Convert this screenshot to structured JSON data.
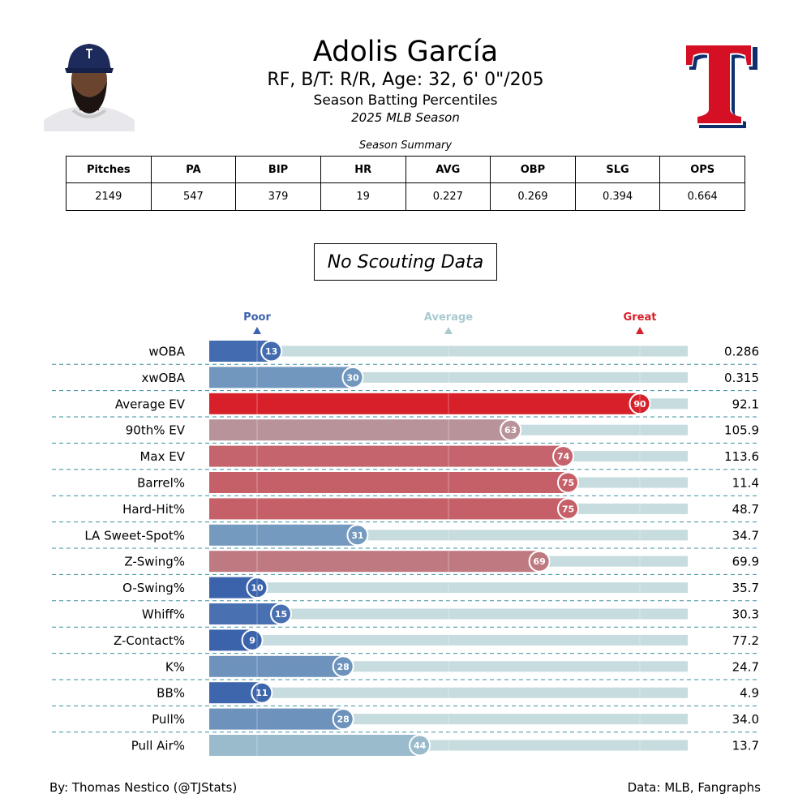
{
  "header": {
    "player_name": "Adolis García",
    "bio": "RF, B/T: R/R, Age: 32, 6' 0\"/205",
    "subtitle": "Season Batting Percentiles",
    "season": "2025 MLB Season"
  },
  "summary": {
    "title": "Season Summary",
    "headers": [
      "Pitches",
      "PA",
      "BIP",
      "HR",
      "AVG",
      "OBP",
      "SLG",
      "OPS"
    ],
    "values": [
      "2149",
      "547",
      "379",
      "19",
      "0.227",
      "0.269",
      "0.394",
      "0.664"
    ]
  },
  "scouting_label": "No Scouting Data",
  "footer": {
    "left": "By: Thomas Nestico (@TJStats)",
    "right": "Data: MLB, Fangraphs"
  },
  "colors": {
    "poor": "#3b63ac",
    "average": "#a9cbd0",
    "great": "#d8202a",
    "track": "#c6dcde",
    "divider": "#3a8fa0"
  },
  "chart_data": {
    "type": "bar",
    "orientation": "horizontal",
    "xlim": [
      0,
      100
    ],
    "scale_markers": [
      {
        "label": "Poor",
        "value": 10
      },
      {
        "label": "Average",
        "value": 50
      },
      {
        "label": "Great",
        "value": 90
      }
    ],
    "categories": [
      "wOBA",
      "xwOBA",
      "Average EV",
      "90th% EV",
      "Max EV",
      "Barrel%",
      "Hard-Hit%",
      "LA Sweet-Spot%",
      "Z-Swing%",
      "O-Swing%",
      "Whiff%",
      "Z-Contact%",
      "K%",
      "BB%",
      "Pull%",
      "Pull Air%"
    ],
    "percentiles": [
      13,
      30,
      90,
      63,
      74,
      75,
      75,
      31,
      69,
      10,
      15,
      9,
      28,
      11,
      28,
      44
    ],
    "stat_values": [
      "0.286",
      "0.315",
      "92.1",
      "105.9",
      "113.6",
      "11.4",
      "48.7",
      "34.7",
      "69.9",
      "35.7",
      "30.3",
      "77.2",
      "24.7",
      "4.9",
      "34.0",
      "13.7"
    ]
  }
}
